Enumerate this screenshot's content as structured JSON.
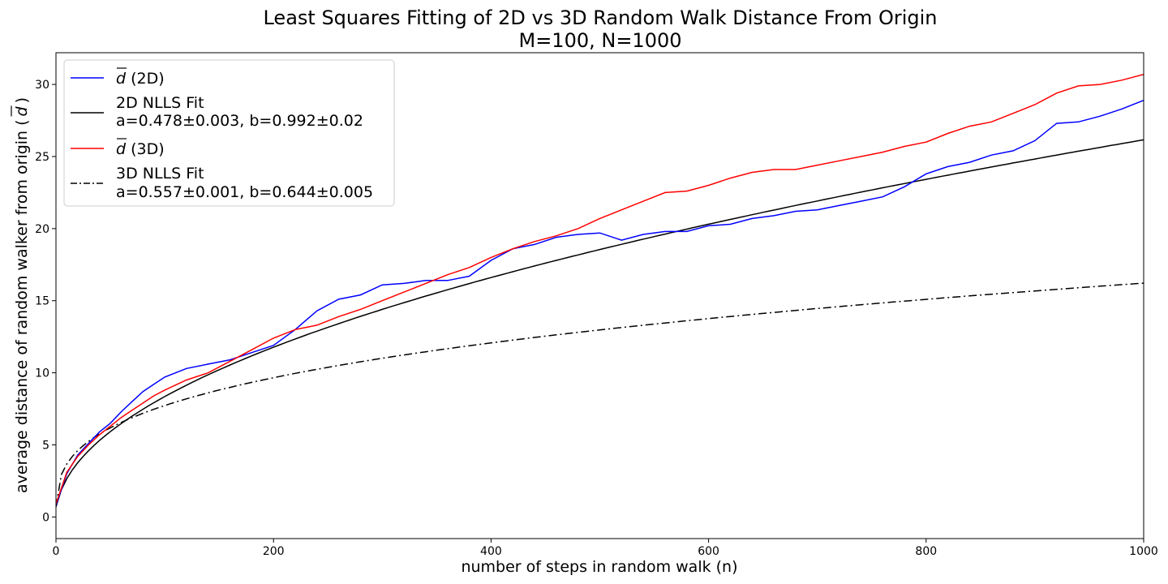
{
  "chart_data": {
    "type": "line",
    "title": "Least Squares Fitting of 2D vs 3D Random Walk Distance From Origin",
    "subtitle": "M=100, N=1000",
    "xlabel": "number of steps in random walk (n)",
    "ylabel_prefix": "average distance of random walker from origin (",
    "ylabel_symbol": "d",
    "ylabel_suffix": ")",
    "xlim": [
      0,
      1000
    ],
    "ylim": [
      -1.5,
      32.2
    ],
    "xticks": [
      0,
      200,
      400,
      600,
      800,
      1000
    ],
    "yticks": [
      0,
      5,
      10,
      15,
      20,
      25,
      30
    ],
    "grid": false,
    "legend_position": "top-left",
    "series": [
      {
        "name": "(2D)",
        "symbol": "d",
        "color": "#0000ff",
        "style": "solid",
        "x": [
          0,
          10,
          20,
          30,
          40,
          50,
          60,
          70,
          80,
          90,
          100,
          120,
          140,
          160,
          180,
          200,
          220,
          240,
          260,
          280,
          300,
          320,
          340,
          360,
          380,
          400,
          420,
          440,
          460,
          480,
          500,
          520,
          540,
          560,
          580,
          600,
          620,
          640,
          660,
          680,
          700,
          720,
          740,
          760,
          780,
          800,
          820,
          840,
          860,
          880,
          900,
          920,
          940,
          960,
          980,
          1000
        ],
        "y": [
          0.8,
          3.0,
          4.3,
          5.1,
          5.9,
          6.5,
          7.3,
          8.0,
          8.7,
          9.2,
          9.7,
          10.3,
          10.6,
          10.9,
          11.4,
          11.9,
          13.0,
          14.3,
          15.1,
          15.4,
          16.1,
          16.2,
          16.4,
          16.4,
          16.7,
          17.8,
          18.6,
          18.9,
          19.4,
          19.6,
          19.7,
          19.2,
          19.6,
          19.8,
          19.8,
          20.2,
          20.3,
          20.7,
          20.9,
          21.2,
          21.3,
          21.6,
          21.9,
          22.2,
          22.9,
          23.8,
          24.3,
          24.6,
          25.1,
          25.4,
          26.1,
          27.3,
          27.4,
          27.8,
          28.3,
          28.9
        ]
      },
      {
        "name": "2D NLLS Fit",
        "params": "a=0.478±0.003, b=0.992±0.02",
        "color": "#000000",
        "style": "solid",
        "a": 0.478,
        "b": 0.992
      },
      {
        "name": "(3D)",
        "symbol": "d",
        "color": "#ff0000",
        "style": "solid",
        "x": [
          0,
          10,
          20,
          30,
          40,
          50,
          60,
          70,
          80,
          90,
          100,
          120,
          140,
          160,
          180,
          200,
          220,
          240,
          260,
          280,
          300,
          320,
          340,
          360,
          380,
          400,
          420,
          440,
          460,
          480,
          500,
          520,
          540,
          560,
          580,
          600,
          620,
          640,
          660,
          680,
          700,
          720,
          740,
          760,
          780,
          800,
          820,
          840,
          860,
          880,
          900,
          920,
          940,
          960,
          980,
          1000
        ],
        "y": [
          0.9,
          3.1,
          4.2,
          5.0,
          5.7,
          6.3,
          6.9,
          7.4,
          7.9,
          8.4,
          8.8,
          9.5,
          10.0,
          10.8,
          11.6,
          12.4,
          13.0,
          13.3,
          13.9,
          14.4,
          15.0,
          15.6,
          16.2,
          16.8,
          17.3,
          18.0,
          18.6,
          19.1,
          19.5,
          20.0,
          20.7,
          21.3,
          21.9,
          22.5,
          22.6,
          23.0,
          23.5,
          23.9,
          24.1,
          24.1,
          24.4,
          24.7,
          25.0,
          25.3,
          25.7,
          26.0,
          26.6,
          27.1,
          27.4,
          28.0,
          28.6,
          29.4,
          29.9,
          30.0,
          30.3,
          30.7
        ]
      },
      {
        "name": "3D NLLS Fit",
        "params": "a=0.557±0.001, b=0.644±0.005",
        "color": "#000000",
        "style": "dashdot",
        "a": 0.557,
        "b": 0.644
      }
    ]
  }
}
